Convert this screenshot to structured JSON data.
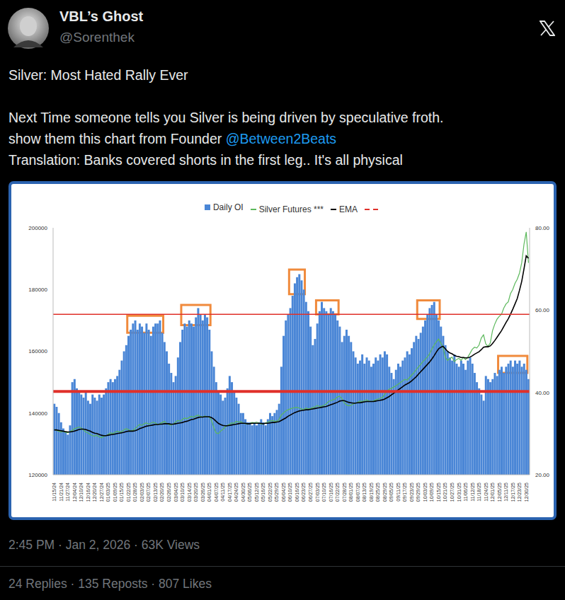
{
  "post": {
    "author": {
      "name": "VBL’s Ghost",
      "handle": "@Sorenthek"
    },
    "text": {
      "title": "Silver: Most Hated Rally Ever",
      "lines": [
        [
          "Next Time someone tells you Silver is being driven by speculative froth."
        ],
        [
          "show them this chart from Founder ",
          "@Between2Beats"
        ],
        [
          "Translation: Banks covered shorts in the first leg.. It's all physical"
        ]
      ]
    },
    "timestamp": "2:45 PM · Jan 2, 2026 · 63K Views",
    "stats": "24 Replies · 135 Reposts · 807 Likes"
  },
  "chart_data": {
    "type": "bar",
    "legend": "top",
    "grid": false,
    "categories": [
      "11/15/24",
      null,
      null,
      "11/21/24",
      null,
      null,
      "11/27/24",
      null,
      null,
      "12/04/24",
      null,
      null,
      "12/10/24",
      null,
      null,
      "12/16/24",
      null,
      null,
      "12/20/24",
      null,
      null,
      "12/27/24",
      null,
      null,
      "01/03/25",
      null,
      null,
      "01/09/25",
      null,
      null,
      "01/15/25",
      null,
      null,
      "01/22/25",
      null,
      null,
      "01/28/25",
      null,
      null,
      "02/03/25",
      null,
      null,
      "02/07/25",
      null,
      null,
      "02/13/25",
      null,
      null,
      "02/20/25",
      null,
      null,
      "02/26/25",
      null,
      null,
      "03/04/25",
      null,
      null,
      "03/10/25",
      null,
      null,
      "03/14/25",
      null,
      null,
      "03/20/25",
      null,
      null,
      "03/26/25",
      null,
      null,
      "04/01/25",
      null,
      null,
      "04/07/25",
      null,
      null,
      "04/11/25",
      null,
      null,
      "04/17/25",
      null,
      null,
      "04/24/25",
      null,
      null,
      "04/30/25",
      null,
      null,
      "05/06/25",
      null,
      null,
      "05/12/25",
      null,
      null,
      "05/16/25",
      null,
      null,
      "05/22/25",
      null,
      null,
      "05/29/25",
      null,
      null,
      "06/04/25",
      null,
      null,
      "06/10/25",
      null,
      null,
      "06/16/25",
      null,
      null,
      "06/23/25",
      null,
      null,
      "06/27/25",
      null,
      null,
      "07/03/25",
      null,
      null,
      "07/10/25",
      null,
      null,
      "07/16/25",
      null,
      null,
      "07/22/25",
      null,
      null,
      "07/28/25",
      null,
      null,
      "08/01/25",
      null,
      null,
      "08/07/25",
      null,
      null,
      "08/13/25",
      null,
      null,
      "08/19/25",
      null,
      null,
      "08/25/25",
      null,
      null,
      "08/29/25",
      null,
      null,
      "09/05/25",
      null,
      null,
      "09/11/25",
      null,
      null,
      "09/17/25",
      null,
      null,
      "09/23/25",
      null,
      null,
      "09/29/25",
      null,
      null,
      "10/03/25",
      null,
      null,
      "10/09/25",
      null,
      null,
      "10/15/25",
      null,
      null,
      "10/21/25",
      null,
      null,
      "10/27/25",
      null,
      null,
      "10/31/25",
      null,
      null,
      "11/06/25",
      null,
      null,
      "11/12/25",
      null,
      null,
      "11/18/25",
      null,
      null,
      "11/24/25",
      null,
      null,
      "12/01/25",
      null,
      null,
      "12/05/25",
      null,
      null,
      "12/11/25",
      null,
      null,
      "12/17/25",
      null,
      null,
      "12/23/25",
      null,
      null,
      "12/30/25",
      null
    ],
    "series": [
      {
        "name": "Daily OI",
        "type": "bar",
        "color": "#4a86d6",
        "values": [
          143000,
          142000,
          140000,
          137000,
          135000,
          134000,
          133000,
          136000,
          150000,
          151000,
          148000,
          147000,
          146000,
          145000,
          147000,
          144000,
          143000,
          146000,
          145000,
          144000,
          146000,
          145000,
          146000,
          148000,
          150000,
          151000,
          150000,
          151000,
          152000,
          154000,
          157000,
          160000,
          162000,
          165000,
          167000,
          169000,
          170000,
          167000,
          169000,
          168000,
          166000,
          169000,
          167000,
          165000,
          168000,
          169000,
          169000,
          170000,
          166000,
          163000,
          160000,
          156000,
          153000,
          150000,
          152000,
          158000,
          163000,
          167000,
          169000,
          168000,
          170000,
          169000,
          168000,
          171000,
          174000,
          172000,
          170000,
          172000,
          171000,
          167000,
          160000,
          155000,
          150000,
          147000,
          146000,
          144000,
          145000,
          148000,
          152000,
          150000,
          147000,
          145000,
          143000,
          140000,
          140000,
          138000,
          137000,
          137000,
          136000,
          137000,
          136000,
          137000,
          138000,
          137000,
          136000,
          138000,
          140000,
          139000,
          140000,
          141000,
          143000,
          155000,
          165000,
          170000,
          172000,
          174000,
          178000,
          182000,
          184000,
          185000,
          183000,
          180000,
          176000,
          173000,
          168000,
          162000,
          164000,
          169000,
          173000,
          176000,
          174000,
          173000,
          172000,
          174000,
          173000,
          172000,
          170000,
          168000,
          163000,
          165000,
          167000,
          165000,
          163000,
          160000,
          158000,
          156000,
          157000,
          159000,
          156000,
          158000,
          157000,
          155000,
          156000,
          158000,
          157000,
          159000,
          158000,
          160000,
          159000,
          155000,
          153000,
          151000,
          154000,
          156000,
          155000,
          157000,
          158000,
          160000,
          159000,
          161000,
          163000,
          165000,
          164000,
          166000,
          168000,
          170000,
          172000,
          174000,
          175000,
          176000,
          172000,
          170000,
          168000,
          165000,
          162000,
          160000,
          158000,
          157000,
          159000,
          156000,
          155000,
          157000,
          156000,
          154000,
          157000,
          158000,
          156000,
          153000,
          150000,
          148000,
          146000,
          144000,
          152000,
          151000,
          150000,
          151000,
          153000,
          152000,
          154000,
          155000,
          153000,
          155000,
          156000,
          157000,
          155000,
          157000,
          156000,
          157000,
          155000,
          156000,
          154000,
          151000
        ]
      },
      {
        "name": "Silver Futures ***",
        "type": "line",
        "color": "#5cb85c",
        "axis": "y2",
        "values": [
          31.0,
          30.8,
          30.6,
          30.4,
          30.6,
          30.3,
          30.2,
          30.5,
          30.8,
          31.2,
          31.4,
          31.6,
          31.4,
          30.9,
          30.4,
          30.2,
          29.8,
          29.5,
          29.4,
          29.6,
          29.2,
          29.0,
          29.3,
          29.5,
          29.8,
          30.2,
          30.0,
          30.3,
          30.6,
          30.4,
          30.5,
          30.9,
          31.2,
          31.0,
          30.6,
          30.8,
          31.2,
          31.8,
          32.2,
          32.0,
          32.4,
          32.6,
          32.3,
          32.5,
          32.8,
          32.6,
          32.2,
          32.4,
          32.7,
          33.0,
          32.5,
          32.2,
          32.0,
          32.4,
          32.8,
          33.2,
          33.0,
          33.4,
          33.8,
          33.6,
          33.9,
          34.2,
          34.0,
          34.3,
          34.5,
          34.2,
          34.0,
          34.3,
          34.1,
          34.0,
          33.2,
          31.5,
          30.2,
          30.0,
          30.6,
          31.0,
          31.6,
          32.0,
          32.3,
          32.6,
          32.5,
          33.0,
          32.8,
          32.9,
          32.6,
          32.4,
          32.3,
          32.5,
          32.7,
          32.6,
          32.8,
          32.6,
          32.3,
          32.4,
          32.6,
          32.8,
          33.0,
          33.2,
          33.0,
          33.0,
          33.4,
          34.5,
          35.0,
          35.5,
          35.8,
          36.0,
          36.2,
          36.3,
          36.4,
          36.2,
          36.0,
          35.8,
          36.2,
          36.0,
          36.1,
          36.3,
          36.5,
          36.8,
          36.6,
          36.7,
          36.9,
          37.2,
          37.8,
          38.0,
          38.2,
          38.4,
          38.9,
          39.1,
          38.5,
          37.5,
          37.0,
          36.8,
          36.9,
          37.2,
          37.4,
          37.6,
          37.9,
          37.8,
          38.0,
          38.2,
          37.9,
          37.8,
          37.9,
          38.2,
          38.4,
          38.6,
          38.8,
          39.5,
          40.3,
          40.8,
          41.0,
          41.3,
          41.6,
          42.0,
          42.4,
          42.8,
          43.2,
          43.0,
          43.6,
          44.2,
          44.8,
          45.5,
          46.2,
          46.8,
          47.5,
          48.0,
          48.6,
          49.4,
          50.5,
          51.5,
          52.3,
          53.0,
          52.0,
          51.0,
          48.5,
          47.8,
          48.2,
          48.6,
          47.5,
          48.0,
          48.3,
          47.8,
          48.5,
          48.0,
          48.6,
          49.5,
          50.5,
          51.0,
          50.8,
          51.5,
          53.2,
          54.0,
          51.8,
          51.2,
          52.0,
          55.0,
          56.6,
          57.8,
          58.5,
          59.0,
          60.5,
          61.5,
          62.0,
          64.0,
          65.0,
          66.5,
          67.5,
          69.0,
          71.5,
          76.0,
          79.0,
          71.5
        ]
      },
      {
        "name": "EMA",
        "type": "line",
        "color": "#000000",
        "axis": "y2",
        "values": [
          30.9,
          30.9,
          30.8,
          30.7,
          30.6,
          30.5,
          30.4,
          30.4,
          30.5,
          30.6,
          30.8,
          31.0,
          31.1,
          31.1,
          31.0,
          30.8,
          30.6,
          30.3,
          30.1,
          30.0,
          29.8,
          29.6,
          29.5,
          29.5,
          29.6,
          29.7,
          29.8,
          29.9,
          30.0,
          30.1,
          30.2,
          30.3,
          30.5,
          30.6,
          30.6,
          30.6,
          30.7,
          30.9,
          31.2,
          31.4,
          31.6,
          31.8,
          31.9,
          32.0,
          32.1,
          32.2,
          32.2,
          32.3,
          32.3,
          32.4,
          32.4,
          32.4,
          32.3,
          32.3,
          32.4,
          32.5,
          32.6,
          32.7,
          32.9,
          33.0,
          33.2,
          33.4,
          33.5,
          33.7,
          33.9,
          34.0,
          34.0,
          34.1,
          34.1,
          34.1,
          33.9,
          33.5,
          33.0,
          32.5,
          32.2,
          32.0,
          31.9,
          31.9,
          32.0,
          32.1,
          32.2,
          32.3,
          32.4,
          32.5,
          32.5,
          32.5,
          32.4,
          32.4,
          32.5,
          32.5,
          32.5,
          32.5,
          32.5,
          32.4,
          32.5,
          32.5,
          32.6,
          32.7,
          32.7,
          32.8,
          32.9,
          33.2,
          33.5,
          33.8,
          34.2,
          34.5,
          34.8,
          35.1,
          35.3,
          35.5,
          35.6,
          35.7,
          35.8,
          35.8,
          35.9,
          36.0,
          36.1,
          36.2,
          36.3,
          36.4,
          36.5,
          36.6,
          36.8,
          37.0,
          37.2,
          37.4,
          37.6,
          37.9,
          38.0,
          38.0,
          37.8,
          37.6,
          37.5,
          37.4,
          37.4,
          37.5,
          37.5,
          37.6,
          37.7,
          37.8,
          37.8,
          37.8,
          37.8,
          37.9,
          38.0,
          38.1,
          38.2,
          38.4,
          38.7,
          39.0,
          39.4,
          39.8,
          40.2,
          40.6,
          41.0,
          41.4,
          41.8,
          42.1,
          42.4,
          42.8,
          43.3,
          43.8,
          44.4,
          45.0,
          45.6,
          46.2,
          46.8,
          47.4,
          48.1,
          48.9,
          49.8,
          50.6,
          51.0,
          51.2,
          50.6,
          50.0,
          49.6,
          49.4,
          49.0,
          48.8,
          48.7,
          48.5,
          48.5,
          48.4,
          48.4,
          48.6,
          48.9,
          49.3,
          49.6,
          49.9,
          50.4,
          51.0,
          51.1,
          51.1,
          51.3,
          51.9,
          52.6,
          53.4,
          54.2,
          55.0,
          56.0,
          57.0,
          57.9,
          59.0,
          60.2,
          61.5,
          62.8,
          64.8,
          67.0,
          70.0,
          73.2,
          72.6
        ]
      }
    ],
    "ylim": [
      120000,
      200000
    ],
    "yticks": [
      120000,
      140000,
      160000,
      180000,
      200000
    ],
    "y2lim": [
      20,
      80
    ],
    "y2ticks": [
      {
        "value": 20,
        "label": "20.00"
      },
      {
        "value": 40,
        "label": "40.00"
      },
      {
        "value": 60,
        "label": "60.00"
      },
      {
        "value": 80,
        "label": "80.00"
      }
    ],
    "reference_lines": [
      {
        "y": 172000,
        "color": "#e0302a"
      },
      {
        "y": 147000,
        "color": "#e0302a"
      }
    ],
    "highlights": [
      {
        "x1": "01/22/25",
        "x2": "02/20/25",
        "y1": 166000,
        "y2": 171500,
        "color": "#f08a3c"
      },
      {
        "x1": "03/10/25",
        "x2": "04/01/25",
        "y1": 168500,
        "y2": 175000,
        "color": "#f08a3c"
      },
      {
        "x1": "06/10/25",
        "x2": "06/23/25",
        "y1": 178500,
        "y2": 186500,
        "color": "#f08a3c"
      },
      {
        "x1": "07/03/25",
        "x2": "07/22/25",
        "y1": 172000,
        "y2": 176500,
        "color": "#f08a3c"
      },
      {
        "x1": "09/29/25",
        "x2": "10/15/25",
        "y1": 170500,
        "y2": 176500,
        "color": "#f08a3c"
      },
      {
        "x1": "12/05/25",
        "x2": "12/30/25",
        "y1": 153000,
        "y2": 158500,
        "color": "#f08a3c"
      }
    ]
  }
}
